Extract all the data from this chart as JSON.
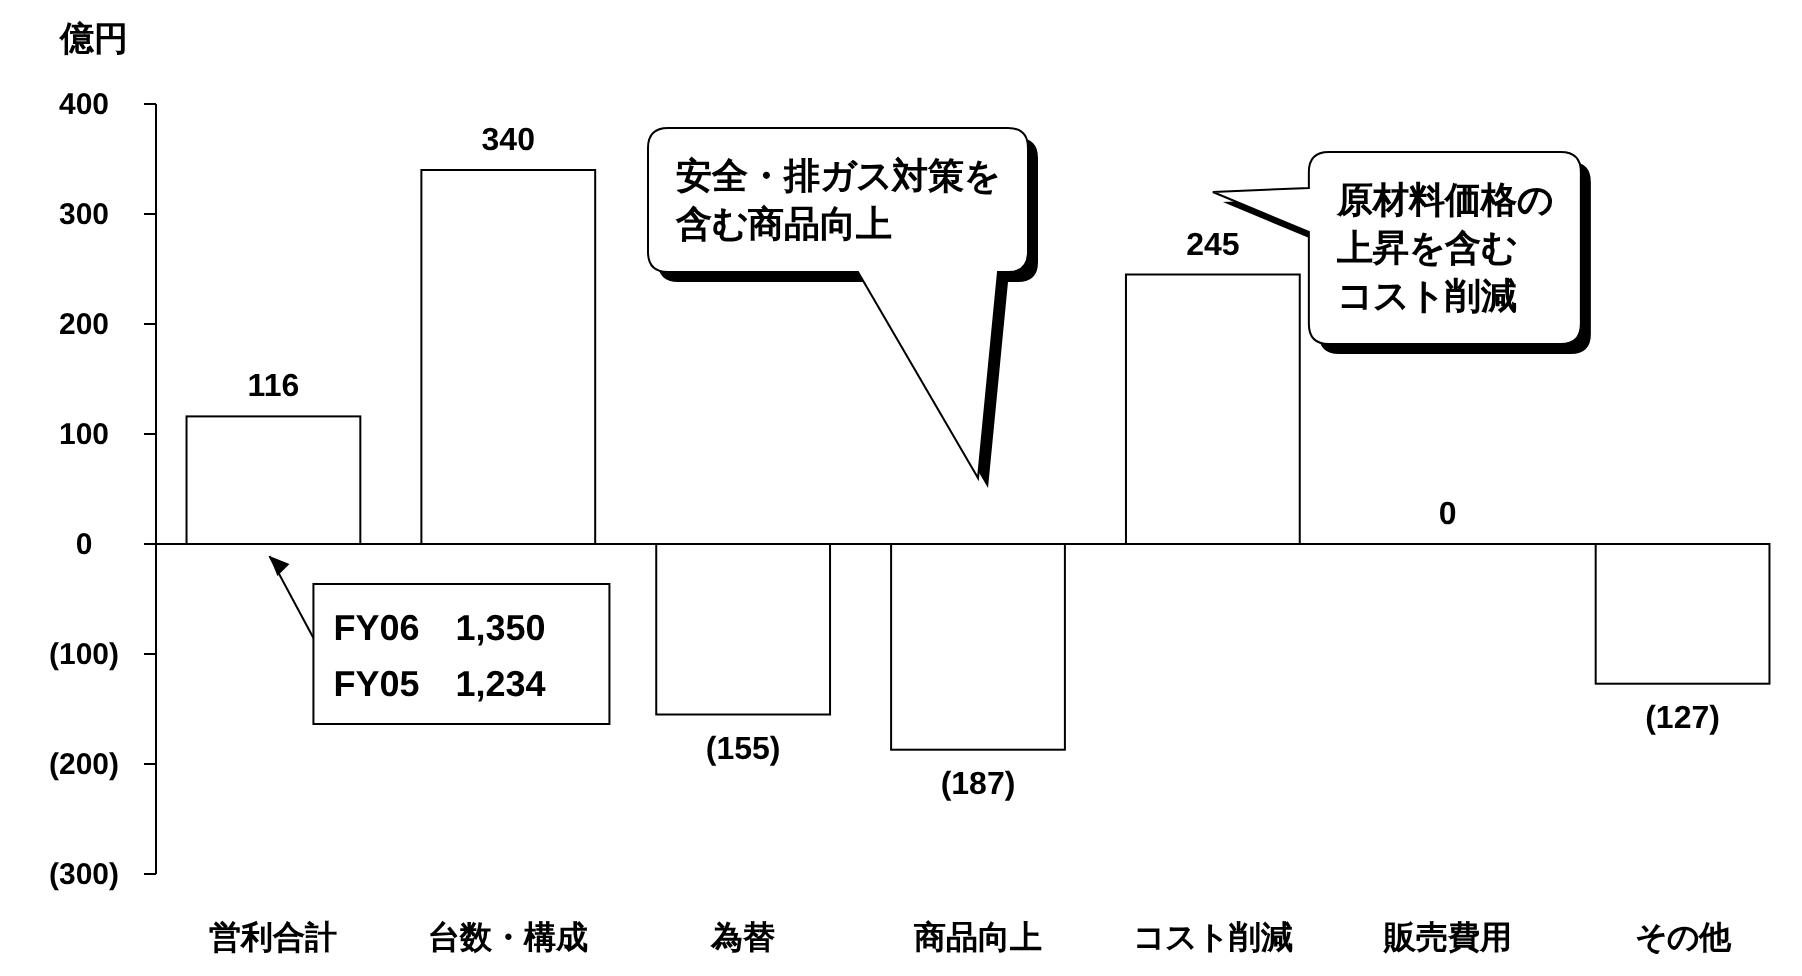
{
  "chart_data": {
    "type": "bar",
    "ylabel": "億円",
    "categories": [
      "営利合計",
      "台数・構成",
      "為替",
      "商品向上",
      "コスト削減",
      "販売費用",
      "その他"
    ],
    "values": [
      116,
      340,
      -155,
      -187,
      245,
      0,
      -127
    ],
    "value_labels": [
      "116",
      "340",
      "(155)",
      "(187)",
      "245",
      "0",
      "(127)"
    ],
    "color": "#ffffff",
    "ylim": [
      -300,
      400
    ],
    "yticks": [
      {
        "value": -300,
        "label": "(300)"
      },
      {
        "value": -200,
        "label": "(200)"
      },
      {
        "value": -100,
        "label": "(100)"
      },
      0,
      100,
      200,
      300,
      400
    ],
    "annotations": [
      {
        "text": "FY06　1,350\nFY05　1,234",
        "x": "営利合計",
        "y": 0
      },
      "安全・排ガス対策を含む商品向上",
      "原材料価格の上昇を含むコスト削減"
    ]
  }
}
